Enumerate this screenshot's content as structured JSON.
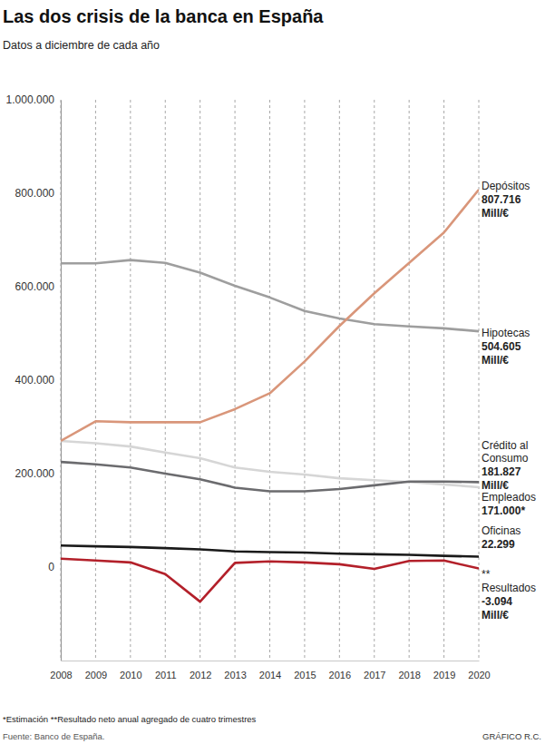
{
  "chart_data": {
    "type": "line",
    "title": "Las dos crisis de la banca en España",
    "subtitle": "Datos a diciembre de cada año",
    "x": [
      2008,
      2009,
      2010,
      2011,
      2012,
      2013,
      2014,
      2015,
      2016,
      2017,
      2018,
      2019,
      2020
    ],
    "xlim": [
      2008,
      2020
    ],
    "xticks": [
      2008,
      2009,
      2010,
      2011,
      2012,
      2013,
      2014,
      2015,
      2016,
      2017,
      2018,
      2019,
      2020
    ],
    "ylim": [
      -200000,
      1000000
    ],
    "yticks": [
      0,
      {
        "value": 200000,
        "label": "200.000"
      },
      {
        "value": 400000,
        "label": "400.000"
      },
      {
        "value": 600000,
        "label": "600.000"
      },
      {
        "value": 800000,
        "label": "800.000"
      },
      {
        "value": 1000000,
        "label": "1.000.000"
      }
    ],
    "grid": true,
    "series": [
      {
        "name": "Empleados",
        "color": "#d6d6d6",
        "values": [
          270000,
          265000,
          258000,
          245000,
          233000,
          213000,
          204000,
          198000,
          190000,
          186000,
          182000,
          177000,
          171000
        ],
        "value_labels": [
          null,
          null,
          null,
          null,
          null,
          null,
          null,
          null,
          null,
          null,
          null,
          null,
          "171.000*"
        ]
      },
      {
        "name": "Crédito al Consumo",
        "color": "#6b6b6e",
        "unit": "Mill/€",
        "values": [
          225000,
          220000,
          213000,
          200000,
          188000,
          170000,
          162000,
          162000,
          167000,
          175000,
          183000,
          183000,
          181827
        ],
        "value_labels": [
          null,
          null,
          null,
          null,
          null,
          null,
          null,
          null,
          null,
          null,
          null,
          null,
          "181.827"
        ]
      },
      {
        "name": "Hipotecas",
        "color": "#9e9e9e",
        "unit": "Mill/€",
        "values": [
          650000,
          650000,
          657000,
          651000,
          630000,
          602000,
          577000,
          548000,
          532000,
          520000,
          515000,
          511000,
          504605
        ],
        "value_labels": [
          null,
          null,
          null,
          null,
          null,
          null,
          null,
          null,
          null,
          null,
          null,
          null,
          "504.605"
        ]
      },
      {
        "name": "Depósitos",
        "color": "#d9967a",
        "unit": "Mill/€",
        "values": [
          270000,
          312000,
          310000,
          310000,
          310000,
          338000,
          372000,
          440000,
          516000,
          586000,
          651000,
          716000,
          807716
        ],
        "value_labels": [
          null,
          null,
          null,
          null,
          null,
          null,
          null,
          null,
          null,
          null,
          null,
          null,
          "807.716"
        ]
      },
      {
        "name": "Oficinas",
        "color": "#1a1a1a",
        "values": [
          46000,
          44500,
          43000,
          40500,
          38000,
          33500,
          31900,
          31000,
          28600,
          27500,
          26200,
          24000,
          22299
        ],
        "value_labels": [
          null,
          null,
          null,
          null,
          null,
          null,
          null,
          null,
          null,
          null,
          null,
          null,
          "22.299"
        ]
      },
      {
        "name": "Resultados",
        "color": "#b3202a",
        "unit": "Mill/€",
        "note_mark": "**",
        "values": [
          18000,
          14000,
          10000,
          -15000,
          -74000,
          9000,
          12000,
          10000,
          6000,
          -4000,
          13000,
          14000,
          -3094
        ],
        "value_labels": [
          null,
          null,
          null,
          null,
          null,
          null,
          null,
          null,
          null,
          null,
          null,
          null,
          "-3.094"
        ]
      }
    ],
    "notes": "*Estimación **Resultado neto anual agregado de cuatro trimestres",
    "source": "Fuente: Banco de España.",
    "credit": "GRÁFICO R.C."
  }
}
